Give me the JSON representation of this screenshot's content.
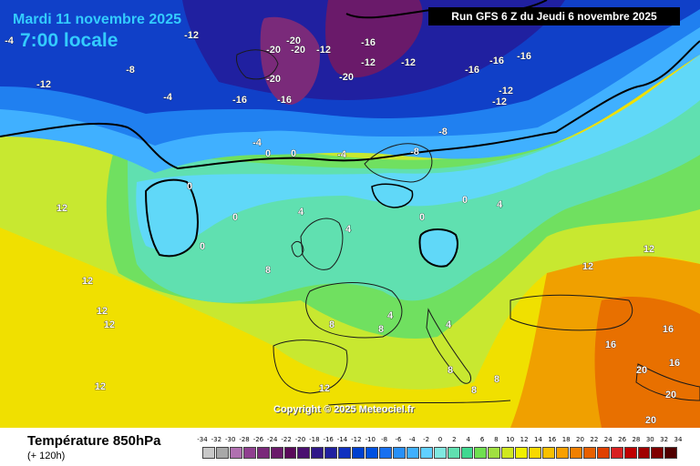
{
  "header": {
    "date": "Mardi 11 novembre 2025",
    "time": "7:00 locale",
    "run": "Run GFS 6 Z du Jeudi 6 novembre 2025"
  },
  "copyright": "Copyright © 2025 Meteociel.fr",
  "footer": {
    "title": "Température 850hPa",
    "subtitle": "(+ 120h)"
  },
  "legend": {
    "values": [
      "-34",
      "-32",
      "-30",
      "-28",
      "-26",
      "-24",
      "-22",
      "-20",
      "-18",
      "-16",
      "-14",
      "-12",
      "-10",
      "-8",
      "-6",
      "-4",
      "-2",
      "0",
      "2",
      "4",
      "6",
      "8",
      "10",
      "12",
      "14",
      "16",
      "18",
      "20",
      "22",
      "24",
      "26",
      "28",
      "30",
      "32",
      "34"
    ],
    "colors": [
      "#c8c8c8",
      "#a8a8a8",
      "#b070b0",
      "#904090",
      "#7a2a7a",
      "#6a1a6a",
      "#5a0a5a",
      "#4a1070",
      "#301888",
      "#2020a0",
      "#1030c0",
      "#0040d0",
      "#0050e0",
      "#1870f0",
      "#2890f8",
      "#40b0ff",
      "#60d0ff",
      "#80e8e0",
      "#60e0b0",
      "#40d890",
      "#70e050",
      "#a0e040",
      "#d0e820",
      "#f0f000",
      "#f8d800",
      "#f8c000",
      "#f8a000",
      "#f08000",
      "#e86000",
      "#e04000",
      "#d82020",
      "#c00000",
      "#a00000",
      "#800000",
      "#500000"
    ]
  },
  "map": {
    "isotherm_labels": [
      "-20",
      "-20",
      "-20",
      "-20",
      "-20",
      "-16",
      "-16",
      "-16",
      "-16",
      "-16",
      "-16",
      "-12",
      "-12",
      "-12",
      "-12",
      "-12",
      "-12",
      "-12",
      "-8",
      "-8",
      "-8",
      "-4",
      "-4",
      "-4",
      "-4",
      "0",
      "0",
      "0",
      "0",
      "0",
      "0",
      "0",
      "4",
      "4",
      "4",
      "4",
      "4",
      "8",
      "8",
      "8",
      "8",
      "8",
      "8",
      "12",
      "12",
      "12",
      "12",
      "12",
      "12",
      "12",
      "12",
      "16",
      "16",
      "16",
      "20",
      "20",
      "20"
    ]
  }
}
